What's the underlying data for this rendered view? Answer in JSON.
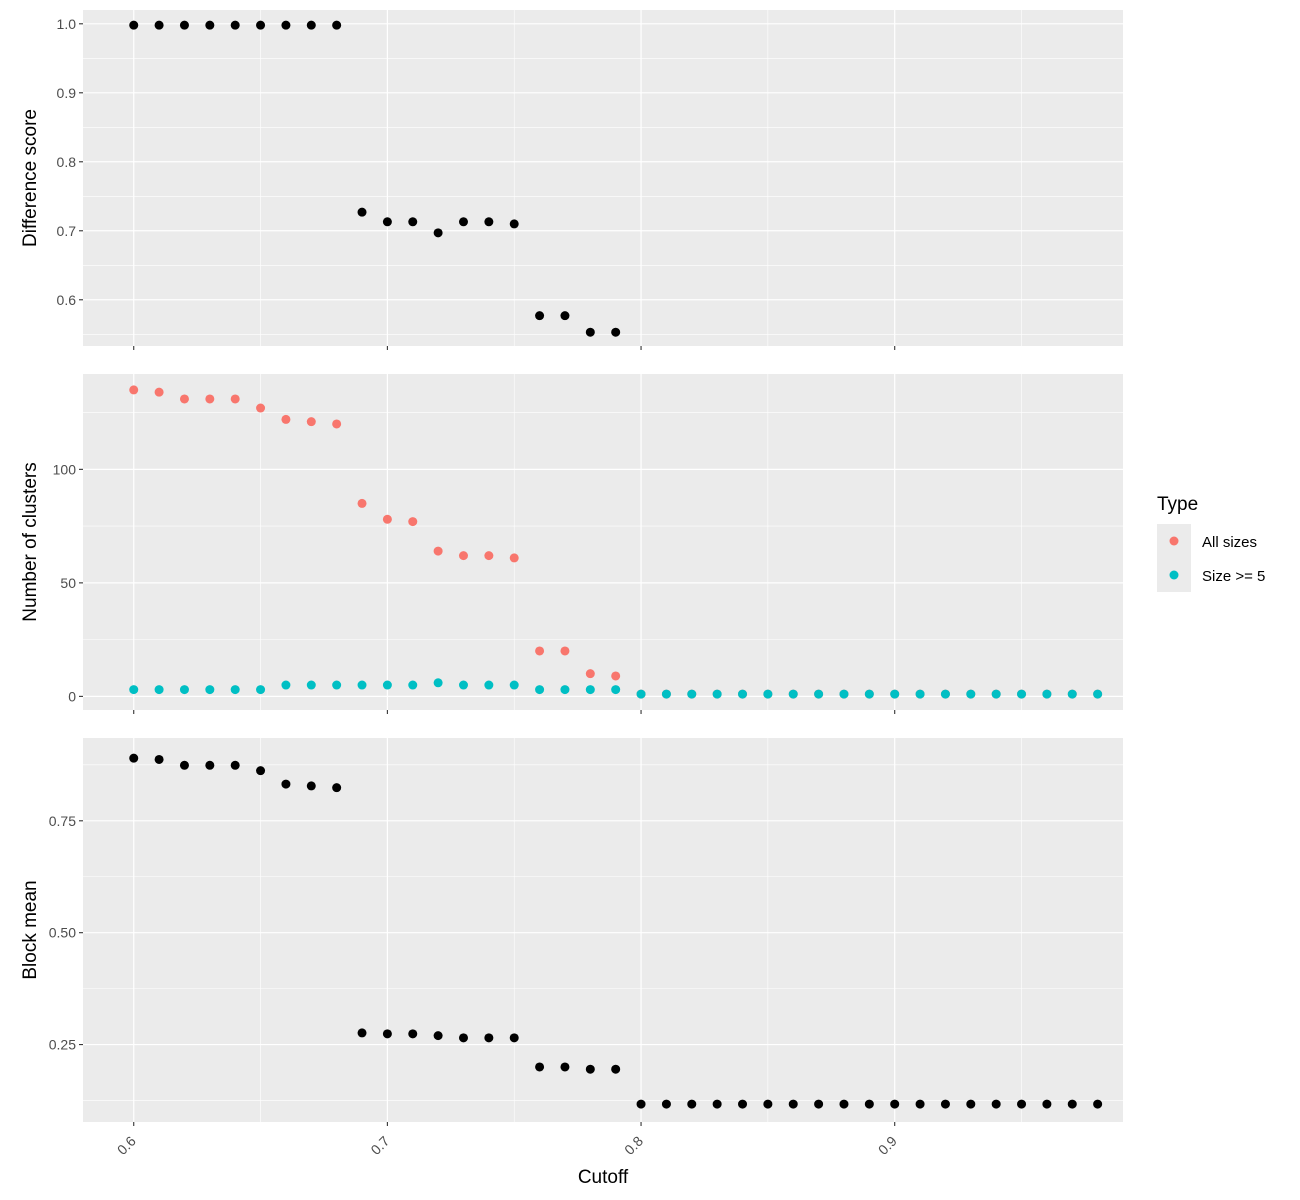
{
  "chart_data": [
    {
      "type": "scatter",
      "ylabel": "Difference score",
      "xlabel": "",
      "xlim": [
        0.58,
        0.99
      ],
      "ylim": [
        0.533,
        1.02
      ],
      "x_ticks": [
        0.6,
        0.7,
        0.8,
        0.9
      ],
      "y_ticks": [
        0.6,
        0.7,
        0.8,
        0.9,
        1.0
      ],
      "y_tick_labels": [
        "0.6",
        "0.7",
        "0.8",
        "0.9",
        "1.0"
      ],
      "series": [
        {
          "color": "#000000",
          "x": [
            0.6,
            0.61,
            0.62,
            0.63,
            0.64,
            0.65,
            0.66,
            0.67,
            0.68,
            0.69,
            0.7,
            0.71,
            0.72,
            0.73,
            0.74,
            0.75,
            0.76,
            0.77,
            0.78,
            0.79
          ],
          "y": [
            0.998,
            0.998,
            0.998,
            0.998,
            0.998,
            0.998,
            0.998,
            0.998,
            0.998,
            0.727,
            0.713,
            0.713,
            0.697,
            0.713,
            0.713,
            0.71,
            0.577,
            0.577,
            0.553,
            0.553
          ]
        }
      ]
    },
    {
      "type": "scatter",
      "ylabel": "Number of clusters",
      "xlabel": "",
      "xlim": [
        0.58,
        0.99
      ],
      "ylim": [
        -6,
        142
      ],
      "x_ticks": [
        0.6,
        0.7,
        0.8,
        0.9
      ],
      "y_ticks": [
        0,
        50,
        100
      ],
      "y_tick_labels": [
        "0",
        "50",
        "100"
      ],
      "legend": {
        "title": "Type",
        "position": "right",
        "entries": [
          "All sizes",
          "Size >= 5"
        ]
      },
      "series": [
        {
          "name": "All sizes",
          "color": "#F8766D",
          "x": [
            0.6,
            0.61,
            0.62,
            0.63,
            0.64,
            0.65,
            0.66,
            0.67,
            0.68,
            0.69,
            0.7,
            0.71,
            0.72,
            0.73,
            0.74,
            0.75,
            0.76,
            0.77,
            0.78,
            0.79,
            0.8,
            0.81,
            0.82,
            0.83,
            0.84,
            0.85,
            0.86,
            0.87,
            0.88,
            0.89,
            0.9,
            0.91,
            0.92,
            0.93,
            0.94,
            0.95,
            0.96,
            0.97,
            0.98
          ],
          "y": [
            135,
            134,
            131,
            131,
            131,
            127,
            122,
            121,
            120,
            85,
            78,
            77,
            64,
            62,
            62,
            61,
            20,
            20,
            10,
            9,
            1,
            1,
            1,
            1,
            1,
            1,
            1,
            1,
            1,
            1,
            1,
            1,
            1,
            1,
            1,
            1,
            1,
            1,
            1
          ]
        },
        {
          "name": "Size >= 5",
          "color": "#00BFC4",
          "x": [
            0.6,
            0.61,
            0.62,
            0.63,
            0.64,
            0.65,
            0.66,
            0.67,
            0.68,
            0.69,
            0.7,
            0.71,
            0.72,
            0.73,
            0.74,
            0.75,
            0.76,
            0.77,
            0.78,
            0.79,
            0.8,
            0.81,
            0.82,
            0.83,
            0.84,
            0.85,
            0.86,
            0.87,
            0.88,
            0.89,
            0.9,
            0.91,
            0.92,
            0.93,
            0.94,
            0.95,
            0.96,
            0.97,
            0.98
          ],
          "y": [
            3,
            3,
            3,
            3,
            3,
            3,
            5,
            5,
            5,
            5,
            5,
            5,
            6,
            5,
            5,
            5,
            3,
            3,
            3,
            3,
            1,
            1,
            1,
            1,
            1,
            1,
            1,
            1,
            1,
            1,
            1,
            1,
            1,
            1,
            1,
            1,
            1,
            1,
            1
          ]
        }
      ]
    },
    {
      "type": "scatter",
      "ylabel": "Block mean",
      "xlabel": "Cutoff",
      "xlim": [
        0.58,
        0.99
      ],
      "ylim": [
        0.077,
        0.935
      ],
      "x_ticks": [
        0.6,
        0.7,
        0.8,
        0.9
      ],
      "x_tick_labels": [
        "0.6",
        "0.7",
        "0.8",
        "0.9"
      ],
      "y_ticks": [
        0.25,
        0.5,
        0.75
      ],
      "y_tick_labels": [
        "0.25",
        "0.50",
        "0.75"
      ],
      "series": [
        {
          "color": "#000000",
          "x": [
            0.6,
            0.61,
            0.62,
            0.63,
            0.64,
            0.65,
            0.66,
            0.67,
            0.68,
            0.69,
            0.7,
            0.71,
            0.72,
            0.73,
            0.74,
            0.75,
            0.76,
            0.77,
            0.78,
            0.79,
            0.8,
            0.81,
            0.82,
            0.83,
            0.84,
            0.85,
            0.86,
            0.87,
            0.88,
            0.89,
            0.9,
            0.91,
            0.92,
            0.93,
            0.94,
            0.95,
            0.96,
            0.97,
            0.98
          ],
          "y": [
            0.89,
            0.887,
            0.874,
            0.874,
            0.874,
            0.862,
            0.832,
            0.828,
            0.824,
            0.276,
            0.274,
            0.274,
            0.27,
            0.265,
            0.265,
            0.265,
            0.2,
            0.2,
            0.195,
            0.195,
            0.117,
            0.117,
            0.117,
            0.117,
            0.117,
            0.117,
            0.117,
            0.117,
            0.117,
            0.117,
            0.117,
            0.117,
            0.117,
            0.117,
            0.117,
            0.117,
            0.117,
            0.117,
            0.117
          ]
        }
      ]
    }
  ]
}
